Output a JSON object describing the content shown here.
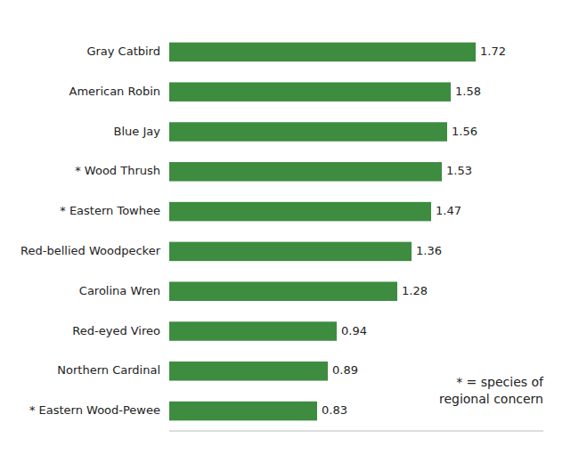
{
  "chart_data": {
    "type": "bar",
    "orientation": "horizontal",
    "categories": [
      "* Eastern Wood-Pewee",
      "Northern Cardinal",
      "Red-eyed Vireo",
      "Carolina Wren",
      "Red-bellied Woodpecker",
      "* Eastern Towhee",
      "* Wood Thrush",
      "Blue Jay",
      "American Robin",
      "Gray Catbird"
    ],
    "values": [
      0.83,
      0.89,
      0.94,
      1.28,
      1.36,
      1.47,
      1.53,
      1.56,
      1.58,
      1.72
    ],
    "color": "#3d8c40",
    "xlim": [
      0,
      2.1
    ],
    "data_labels": true,
    "tick_labels": "y",
    "grid": false,
    "annotations": [
      "* = species of\nregional concern"
    ]
  }
}
